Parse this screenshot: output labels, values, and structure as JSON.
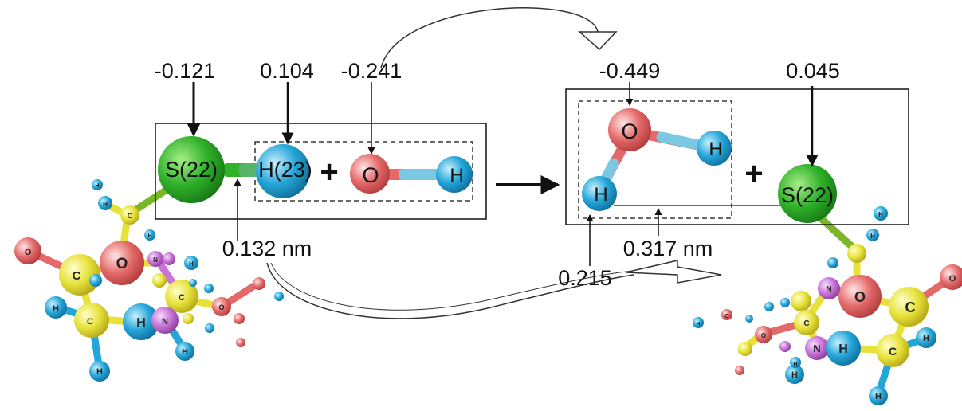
{
  "colors": {
    "sulfur": "#2fb12a",
    "hydrogen": "#25a6d8",
    "oxygen": "#e46a6a",
    "carbon": "#e7e23a",
    "nitrogen": "#c873d6"
  },
  "reactants": {
    "sulfur_label": "S(22)",
    "hydrogen_label": "H(23)",
    "plus": "+",
    "oxygen_label": "O",
    "radical_h_label": "H",
    "charge_s": "-0.121",
    "charge_h": "0.104",
    "charge_o": "-0.241",
    "bond_length": "0.132 nm"
  },
  "products": {
    "oxygen_label": "O",
    "h_upper_label": "H",
    "h_lower_label": "H",
    "plus": "+",
    "sulfur_label": "S(22)",
    "charge_o": "-0.449",
    "charge_s": "0.045",
    "charge_h": "0.215",
    "distance": "0.317 nm"
  },
  "molecule_left": {
    "atoms": [
      "O",
      "O",
      "C",
      "H",
      "C",
      "H",
      "H",
      "H",
      "N",
      "C",
      "N",
      "C",
      "O",
      "H",
      "H",
      "H",
      "H"
    ]
  },
  "molecule_right": {
    "atoms": [
      "O",
      "C",
      "O",
      "N",
      "N",
      "H",
      "C",
      "H",
      "H",
      "H",
      "C",
      "H",
      "H",
      "H",
      "H",
      "O",
      "O"
    ]
  }
}
